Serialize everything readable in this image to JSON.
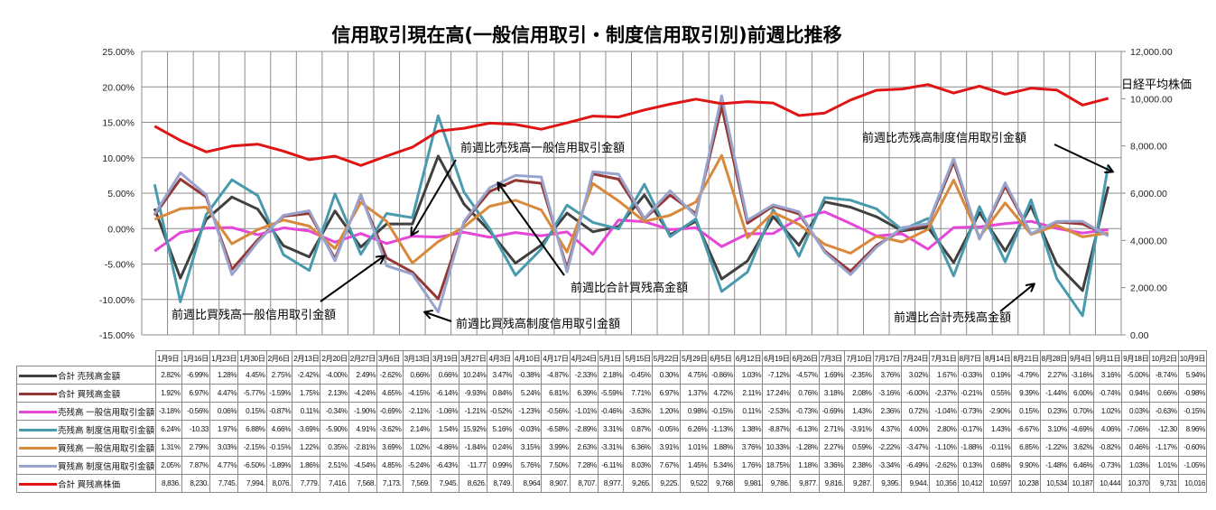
{
  "chart_data": {
    "type": "line",
    "title": "信用取引現在高(一般信用取引・制度信用取引別)前週比推移",
    "categories": [
      "1月9日",
      "1月16日",
      "1月23日",
      "1月30日",
      "2月6日",
      "2月13日",
      "2月20日",
      "2月27日",
      "3月6日",
      "3月13日",
      "3月19日",
      "3月27日",
      "4月3日",
      "4月10日",
      "4月17日",
      "4月24日",
      "5月1日",
      "5月15日",
      "5月22日",
      "5月29日",
      "6月5日",
      "6月12日",
      "6月19日",
      "6月26日",
      "7月3日",
      "7月10日",
      "7月17日",
      "7月24日",
      "7月31日",
      "8月7日",
      "8月14日",
      "8月21日",
      "8月28日",
      "9月4日",
      "9月11日",
      "9月18日",
      "10月2日",
      "10月9日"
    ],
    "y_left": {
      "min": -15,
      "max": 25,
      "step": 5,
      "tick_labels": [
        "-15.00%",
        "-10.00%",
        "-5.00%",
        "0.00%",
        "5.00%",
        "10.00%",
        "15.00%",
        "20.00%",
        "25.00%"
      ]
    },
    "y_right": {
      "label": "日経平均株価",
      "min": 0,
      "max": 12000,
      "step": 2000,
      "tick_labels": [
        "0.00",
        "2,000.00",
        "4,000.00",
        "6,000.00",
        "8,000.00",
        "10,000.00",
        "12,000.00"
      ]
    },
    "grid": true,
    "legend": "table-bottom",
    "series": [
      {
        "name": "合計 売残高金額",
        "color": "#404040",
        "axis": "left",
        "values": [
          "2.82%",
          "-6.99%",
          "1.28%",
          "4.45%",
          "2.75%",
          "-2.42%",
          "-4.00%",
          "2.49%",
          "-2.62%",
          "0.66%",
          "0.66%",
          "10.24%",
          "3.47%",
          "-0.38%",
          "-4.87%",
          "-2.33%",
          "2.18%",
          "-0.45%",
          "0.30%",
          "4.75%",
          "-0.86%",
          "1.03%",
          "-7.12%",
          "-4.57%",
          "1.69%",
          "-2.35%",
          "3.76%",
          "3.02%",
          "1.67%",
          "-0.33%",
          "0.19%",
          "-4.79%",
          "2.27%",
          "-3.16%",
          "3.16%",
          "-5.00%",
          "-8.74%",
          "5.94%"
        ]
      },
      {
        "name": "合計 買残高金額",
        "color": "#953735",
        "axis": "left",
        "values": [
          "1.92%",
          "6.97%",
          "4.47%",
          "-5.77%",
          "-1.59%",
          "1.75%",
          "2.13%",
          "-4.24%",
          "4.65%",
          "-4.15%",
          "-6.14%",
          "-9.93%",
          "0.84%",
          "5.24%",
          "6.81%",
          "6.39%",
          "-5.59%",
          "7.71%",
          "6.97%",
          "1.37%",
          "4.72%",
          "2.11%",
          "17.24%",
          "0.76%",
          "3.18%",
          "2.08%",
          "-3.16%",
          "-6.00%",
          "-2.37%",
          "-0.21%",
          "0.55%",
          "9.39%",
          "-1.44%",
          "6.00%",
          "-0.74%",
          "0.94%",
          "0.66%",
          "-0.98%"
        ]
      },
      {
        "name": "売残高 一般信用取引金額",
        "color": "#e646d8",
        "axis": "left",
        "values": [
          "-3.18%",
          "-0.56%",
          "0.06%",
          "0.15%",
          "-0.87%",
          "0.11%",
          "-0.34%",
          "-1.90%",
          "-0.69%",
          "-2.11%",
          "-1.06%",
          "-1.21%",
          "-0.52%",
          "-1.23%",
          "-0.56%",
          "-1.01%",
          "-0.46%",
          "-3.63%",
          "1.20%",
          "0.98%",
          "-0.15%",
          "0.11%",
          "-2.53%",
          "-0.73%",
          "-0.69%",
          "1.43%",
          "2.36%",
          "0.72%",
          "-1.04%",
          "-0.73%",
          "-2.90%",
          "0.15%",
          "0.23%",
          "0.70%",
          "1.02%",
          "0.03%",
          "-0.63%",
          "-0.15%"
        ]
      },
      {
        "name": "売残高 制度信用取引金額",
        "color": "#4a9aae",
        "axis": "left",
        "values": [
          "6.24%",
          "-10.33",
          "1.97%",
          "6.88%",
          "4.66%",
          "-3.69%",
          "-5.90%",
          "4.91%",
          "-3.62%",
          "2.14%",
          "1.54%",
          "15.92%",
          "5.16%",
          "-0.03%",
          "-6.58%",
          "-2.89%",
          "3.31%",
          "0.87%",
          "-0.05%",
          "6.26%",
          "-1.13%",
          "1.38%",
          "-8.87%",
          "-6.13%",
          "2.71%",
          "-3.91%",
          "4.37%",
          "4.00%",
          "2.80%",
          "-0.17%",
          "1.43%",
          "-6.67%",
          "3.10%",
          "-4.69%",
          "4.06%",
          "-7.06%",
          "-12.30",
          "8.96%"
        ]
      },
      {
        "name": "買残高 一般信用取引金額",
        "color": "#d9893c",
        "axis": "left",
        "values": [
          "1.31%",
          "2.79%",
          "3.03%",
          "-2.15%",
          "-0.15%",
          "1.22%",
          "0.35%",
          "-2.81%",
          "3.69%",
          "1.02%",
          "-4.86%",
          "-1.84%",
          "0.24%",
          "3.15%",
          "3.99%",
          "2.63%",
          "-3.31%",
          "6.36%",
          "3.91%",
          "1.01%",
          "1.88%",
          "3.76%",
          "10.33%",
          "-1.28%",
          "2.27%",
          "0.59%",
          "-2.22%",
          "-3.47%",
          "-1.10%",
          "-1.88%",
          "-0.11%",
          "6.85%",
          "-1.22%",
          "3.62%",
          "-0.82%",
          "0.46%",
          "-1.17%",
          "-0.60%"
        ]
      },
      {
        "name": "買残高 制度信用取引金額",
        "color": "#98a4cc",
        "axis": "left",
        "values": [
          "2.05%",
          "7.87%",
          "4.77%",
          "-6.50%",
          "-1.89%",
          "1.86%",
          "2.51%",
          "-4.54%",
          "4.85%",
          "-5.24%",
          "-6.43%",
          "-11.77",
          "0.99%",
          "5.76%",
          "7.50%",
          "7.28%",
          "-6.11%",
          "8.03%",
          "7.67%",
          "1.45%",
          "5.34%",
          "1.76%",
          "18.75%",
          "1.18%",
          "3.36%",
          "2.38%",
          "-3.34%",
          "-6.49%",
          "-2.62%",
          "0.13%",
          "0.68%",
          "9.90%",
          "-1.48%",
          "6.46%",
          "-0.73%",
          "1.03%",
          "1.01%",
          "-1.05%"
        ]
      },
      {
        "name": "合計 買残高株価",
        "color": "#e01414",
        "axis": "right",
        "values": [
          "8,836.",
          "8,230.",
          "7,745.",
          "7,994.",
          "8,076.",
          "7,779.",
          "7,416.",
          "7,568.",
          "7,173.",
          "7,569.",
          "7,945.",
          "8,626.",
          "8,749.",
          "8,964",
          "8,907.",
          "8,707.",
          "8,977.",
          "9,265.",
          "9,225.",
          "9,522",
          "9,768",
          "9,981",
          "9,786.",
          "9,877.",
          "9,816.",
          "9,287.",
          "9,395.",
          "9,944.",
          "10,356",
          "10,412",
          "10,597",
          "10,238",
          "10,534",
          "10,187",
          "10,444",
          "10,370",
          "9,731",
          "10,016"
        ]
      }
    ],
    "annotations": [
      {
        "text": "前週比売残高一般信用取引金額"
      },
      {
        "text": "前週比合計買残高金額"
      },
      {
        "text": "前週比買残高一般信用取引金額"
      },
      {
        "text": "前週比買残高制度信用取引金額"
      },
      {
        "text": "前週比売残高制度信用取引金額"
      },
      {
        "text": "前週比合計売残高金額"
      }
    ]
  }
}
